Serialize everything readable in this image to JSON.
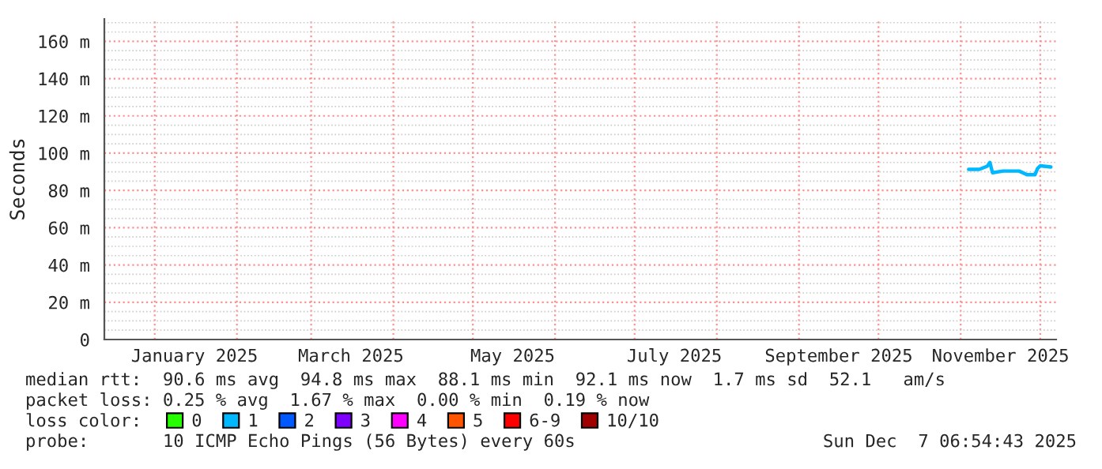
{
  "chart_data": {
    "type": "line",
    "ylabel": "Seconds",
    "legend_title": "loss color:",
    "legend": "bottom",
    "grid": true,
    "xlim": [
      "2024-12-13",
      "2025-12-07"
    ],
    "xticks": [
      {
        "value": "2025-01-16",
        "label": "January 2025"
      },
      {
        "value": "2025-03-16",
        "label": "March 2025"
      },
      {
        "value": "2025-05-16",
        "label": "May 2025"
      },
      {
        "value": "2025-07-16",
        "label": "July 2025"
      },
      {
        "value": "2025-09-16",
        "label": "September 2025"
      },
      {
        "value": "2025-11-16",
        "label": "November 2025"
      }
    ],
    "ylim": [
      0,
      172
    ],
    "yticks": [
      0,
      {
        "value": 20,
        "label": "20 m"
      },
      {
        "value": 40,
        "label": "40 m"
      },
      {
        "value": 60,
        "label": "60 m"
      },
      {
        "value": 80,
        "label": "80 m"
      },
      {
        "value": 100,
        "label": "100 m"
      },
      {
        "value": 120,
        "label": "120 m"
      },
      {
        "value": 140,
        "label": "140 m"
      },
      {
        "value": 160,
        "label": "160 m"
      }
    ],
    "x": [
      "2025-11-04",
      "2025-11-08",
      "2025-11-11",
      "2025-11-12",
      "2025-11-13",
      "2025-11-17",
      "2025-11-23",
      "2025-11-26",
      "2025-11-29",
      "2025-11-30",
      "2025-12-01",
      "2025-12-05"
    ],
    "series": [
      {
        "name": "0",
        "color": "#26ff00",
        "values": [
          null,
          null,
          null,
          null,
          null,
          null,
          null,
          null,
          null,
          null,
          null,
          null
        ]
      },
      {
        "name": "1",
        "color": "#00b8ff",
        "values": [
          91.3,
          91.3,
          93,
          95,
          89.5,
          90.4,
          90.4,
          88.4,
          88.4,
          91.8,
          93.2,
          92.6
        ]
      },
      {
        "name": "2",
        "color": "#0059ff",
        "values": [
          null,
          null,
          null,
          null,
          null,
          null,
          null,
          null,
          null,
          null,
          null,
          null
        ]
      },
      {
        "name": "3",
        "color": "#7e00ff",
        "values": [
          null,
          null,
          null,
          null,
          null,
          null,
          null,
          null,
          null,
          null,
          null,
          null
        ]
      },
      {
        "name": "4",
        "color": "#ff00ff",
        "values": [
          null,
          null,
          null,
          null,
          null,
          null,
          null,
          null,
          null,
          null,
          null,
          null
        ]
      },
      {
        "name": "5",
        "color": "#ff5500",
        "values": [
          null,
          null,
          null,
          null,
          null,
          null,
          null,
          null,
          null,
          null,
          null,
          null
        ]
      },
      {
        "name": "6-9",
        "color": "#ff0000",
        "values": [
          null,
          null,
          null,
          null,
          null,
          null,
          null,
          null,
          null,
          null,
          null,
          null
        ]
      },
      {
        "name": "10/10",
        "color": "#a10000",
        "values": [
          null,
          null,
          null,
          null,
          null,
          null,
          null,
          null,
          null,
          null,
          null,
          null
        ]
      }
    ],
    "annotations": [
      "median rtt:  90.6 ms avg  94.8 ms max  88.1 ms min  92.1 ms now  1.7 ms sd  52.1   am/s",
      "packet loss: 0.25 % avg  1.67 % max  0.00 % min  0.19 % now",
      "probe:       10 ICMP Echo Pings (56 Bytes) every 60s",
      "Sun Dec  7 06:54:43 2025"
    ]
  }
}
